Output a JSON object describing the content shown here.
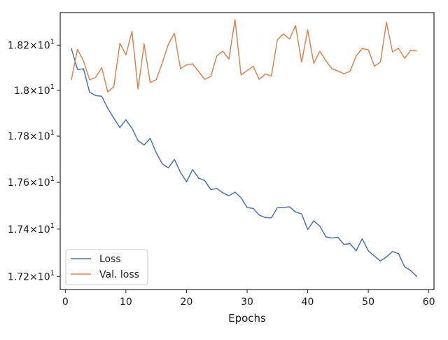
{
  "chart_data": {
    "type": "line",
    "title": "",
    "xlabel": "Epochs",
    "ylabel": "",
    "xlim": [
      -0.85,
      60.85
    ],
    "ylim": [
      17.145,
      18.345
    ],
    "yscale": "log",
    "grid": false,
    "legend_position": "lower-left",
    "x_ticks": [
      0,
      10,
      20,
      30,
      40,
      50,
      60
    ],
    "x_tick_labels": [
      "0",
      "10",
      "20",
      "30",
      "40",
      "50",
      "60"
    ],
    "y_ticks": [
      17.2,
      17.4,
      17.6,
      17.8,
      18.0,
      18.2
    ],
    "y_tick_labels": [
      "1.72×10^1",
      "1.74×10^1",
      "1.76×10^1",
      "1.78×10^1",
      "1.8×10^1",
      "1.82×10^1"
    ],
    "y_tick_display": [
      {
        "mant": "1.72",
        "base": "10",
        "exp": "1"
      },
      {
        "mant": "1.74",
        "base": "10",
        "exp": "1"
      },
      {
        "mant": "1.76",
        "base": "10",
        "exp": "1"
      },
      {
        "mant": "1.78",
        "base": "10",
        "exp": "1"
      },
      {
        "mant": "1.8",
        "base": "10",
        "exp": "1"
      },
      {
        "mant": "1.82",
        "base": "10",
        "exp": "1"
      }
    ],
    "x": [
      1,
      2,
      3,
      4,
      5,
      6,
      7,
      8,
      9,
      10,
      11,
      12,
      13,
      14,
      15,
      16,
      17,
      18,
      19,
      20,
      21,
      22,
      23,
      24,
      25,
      26,
      27,
      28,
      29,
      30,
      31,
      32,
      33,
      34,
      35,
      36,
      37,
      38,
      39,
      40,
      41,
      42,
      43,
      44,
      45,
      46,
      47,
      48,
      49,
      50,
      51,
      52,
      53,
      54,
      55,
      56,
      57,
      58
    ],
    "series": [
      {
        "name": "Loss",
        "color": "#4c72b0",
        "values": [
          18.185,
          18.092,
          18.095,
          17.992,
          17.977,
          17.974,
          17.921,
          17.878,
          17.837,
          17.871,
          17.834,
          17.78,
          17.761,
          17.79,
          17.728,
          17.68,
          17.662,
          17.699,
          17.643,
          17.602,
          17.655,
          17.618,
          17.608,
          17.569,
          17.573,
          17.555,
          17.542,
          17.558,
          17.534,
          17.492,
          17.488,
          17.46,
          17.449,
          17.448,
          17.491,
          17.492,
          17.495,
          17.473,
          17.465,
          17.398,
          17.435,
          17.413,
          17.367,
          17.362,
          17.365,
          17.335,
          17.338,
          17.308,
          17.359,
          17.308,
          17.286,
          17.265,
          17.282,
          17.305,
          17.296,
          17.24,
          17.225,
          17.2
        ]
      },
      {
        "name": "Val. loss",
        "color": "#dd8452",
        "values": [
          18.047,
          18.181,
          18.13,
          18.046,
          18.057,
          18.1,
          17.993,
          18.016,
          18.208,
          18.157,
          18.261,
          18.005,
          18.206,
          18.034,
          18.047,
          18.121,
          18.203,
          18.253,
          18.095,
          18.112,
          18.117,
          18.083,
          18.048,
          18.061,
          18.152,
          18.173,
          18.138,
          18.314,
          18.068,
          18.087,
          18.106,
          18.048,
          18.072,
          18.063,
          18.224,
          18.25,
          18.227,
          18.287,
          18.125,
          18.268,
          18.119,
          18.173,
          18.131,
          18.095,
          18.085,
          18.073,
          18.084,
          18.151,
          18.185,
          18.179,
          18.107,
          18.124,
          18.302,
          18.17,
          18.186,
          18.141,
          18.177,
          18.174
        ]
      }
    ]
  }
}
